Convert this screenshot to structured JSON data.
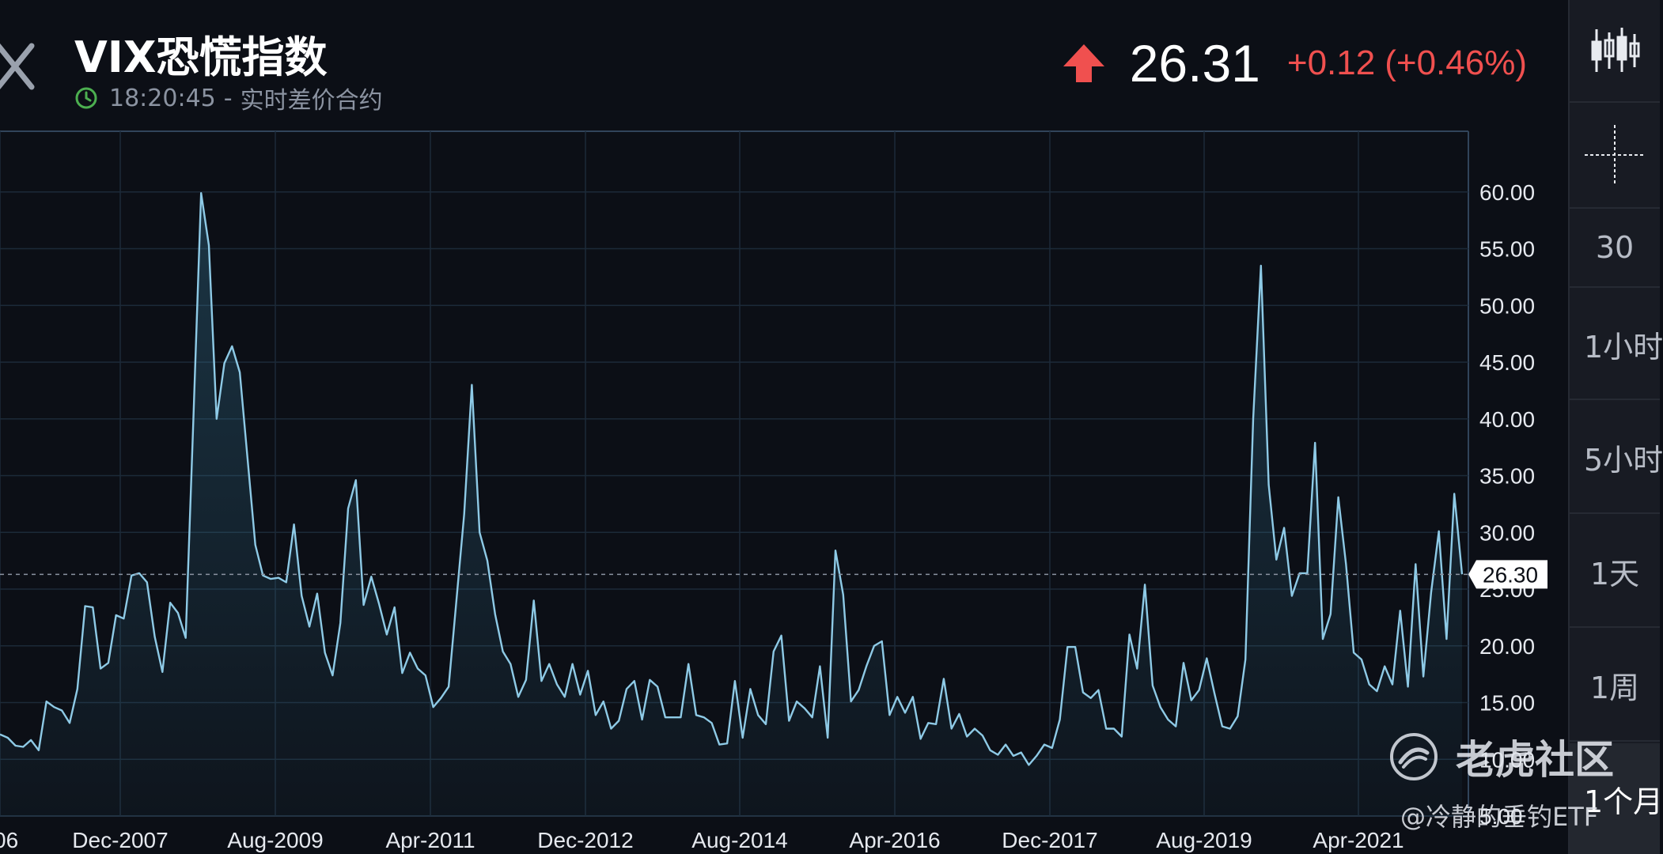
{
  "header": {
    "title": "VIX恐慌指数",
    "time": "18:20:45",
    "separator": "-",
    "contract": "实时差价合约"
  },
  "quote": {
    "price": "26.31",
    "change": "+0.12",
    "change_pct": "(+0.46%)",
    "direction": "up",
    "up_color": "#f0504f"
  },
  "sidebar": {
    "tools": [
      "candlestick-icon",
      "crosshair-icon"
    ],
    "periods": [
      {
        "label": "30",
        "active": false
      },
      {
        "label": "1小时",
        "active": false
      },
      {
        "label": "5小时",
        "active": false
      },
      {
        "label": "1天",
        "active": false
      },
      {
        "label": "1周",
        "active": false
      },
      {
        "label": "1个月",
        "active": true
      }
    ]
  },
  "watermark": {
    "brand": "老虎社区",
    "author": "@冷静的垂钓ETF"
  },
  "chart_data": {
    "type": "area",
    "title": "",
    "xlabel": "",
    "ylabel": "",
    "ylim": [
      5,
      65
    ],
    "y_ticks": [
      "60.00",
      "55.00",
      "50.00",
      "45.00",
      "40.00",
      "35.00",
      "30.00",
      "25.00",
      "20.00",
      "15.00",
      "10.00",
      "5.00"
    ],
    "x_ticks": [
      "06",
      "Dec-2007",
      "Aug-2009",
      "Apr-2011",
      "Dec-2012",
      "Aug-2014",
      "Apr-2016",
      "Dec-2017",
      "Aug-2019",
      "Apr-2021"
    ],
    "last_value": "26.30",
    "last_value_num": 26.3,
    "grid": true,
    "line_color": "#8ecae6",
    "series": [
      {
        "values": [
          12.2,
          11.9,
          11.2,
          11.1,
          11.7,
          10.8,
          15.1,
          14.6,
          14.3,
          13.2,
          16.2,
          23.5,
          23.4,
          18.0,
          18.5,
          22.7,
          22.4,
          26.2,
          26.4,
          25.6,
          20.8,
          17.7,
          23.8,
          22.9,
          20.7,
          39.9,
          59.9,
          55.3,
          40.0,
          44.9,
          46.4,
          44.1,
          36.5,
          28.9,
          26.2,
          25.9,
          26.0,
          25.6,
          30.7,
          24.4,
          21.7,
          24.6,
          19.4,
          17.4,
          22.0,
          32.1,
          34.6,
          23.6,
          26.1,
          23.7,
          21.0,
          23.4,
          17.6,
          19.4,
          18.0,
          17.4,
          14.6,
          15.4,
          16.4,
          24.0,
          31.6,
          43.0,
          30.0,
          27.5,
          22.8,
          19.5,
          18.4,
          15.5,
          17.0,
          24.0,
          16.9,
          18.4,
          16.6,
          15.5,
          18.4,
          15.7,
          17.8,
          13.9,
          15.1,
          12.7,
          13.4,
          16.2,
          16.9,
          13.5,
          17.0,
          16.4,
          13.7,
          13.7,
          13.7,
          18.4,
          13.9,
          13.7,
          13.2,
          11.3,
          11.4,
          16.9,
          11.9,
          16.2,
          13.9,
          13.1,
          19.5,
          20.9,
          13.4,
          15.1,
          14.5,
          13.7,
          18.2,
          11.9,
          28.4,
          24.5,
          15.1,
          16.1,
          18.2,
          20.0,
          20.4,
          13.9,
          15.5,
          14.1,
          15.5,
          11.8,
          13.2,
          13.1,
          17.1,
          12.7,
          14.0,
          12.0,
          12.7,
          12.1,
          10.8,
          10.4,
          11.3,
          10.3,
          10.6,
          9.5,
          10.3,
          11.3,
          11.0,
          13.5,
          19.9,
          19.9,
          15.9,
          15.4,
          16.1,
          12.7,
          12.7,
          12.0,
          21.0,
          18.0,
          25.4,
          16.5,
          14.6,
          13.5,
          12.9,
          18.5,
          15.2,
          16.1,
          18.9,
          15.8,
          12.9,
          12.7,
          13.8,
          18.8,
          40.0,
          53.5,
          34.2,
          27.6,
          30.4,
          24.4,
          26.4,
          26.4,
          37.9,
          20.6,
          22.8,
          33.1,
          27.2,
          19.4,
          18.8,
          16.6,
          16.0,
          18.2,
          16.6,
          23.1,
          16.4,
          27.2,
          17.3,
          24.7,
          30.1,
          20.6,
          33.4,
          26.3
        ]
      }
    ]
  }
}
